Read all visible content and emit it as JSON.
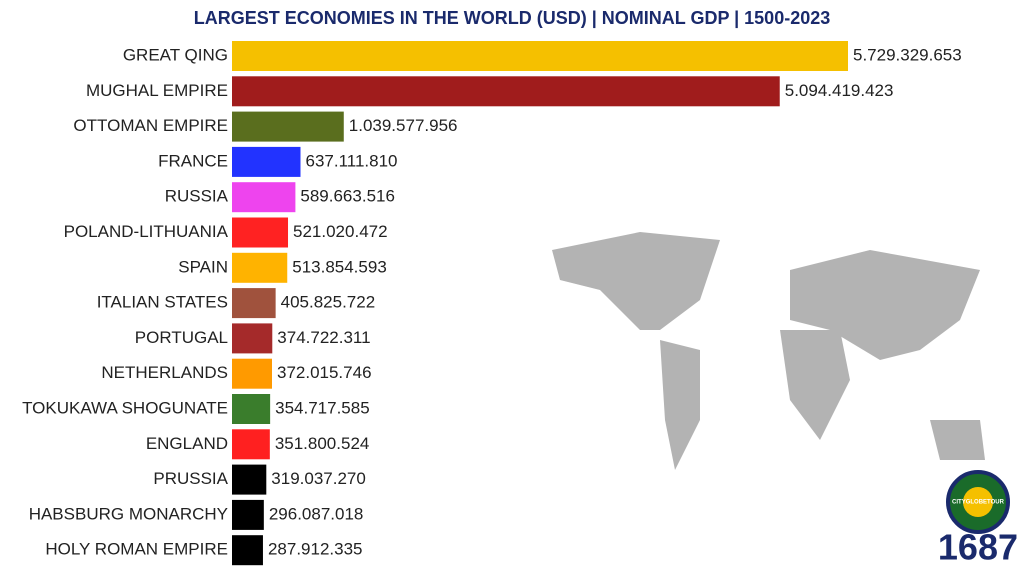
{
  "chart_data": {
    "type": "bar",
    "orientation": "horizontal",
    "title": "LARGEST ECONOMIES IN THE WORLD (USD) | NOMINAL GDP | 1500-2023",
    "period": "1687",
    "logo_text": "CITYGLOBETOUR",
    "categories": [
      "GREAT QING",
      "MUGHAL EMPIRE",
      "OTTOMAN EMPIRE",
      "FRANCE",
      "RUSSIA",
      "POLAND-LITHUANIA",
      "SPAIN",
      "ITALIAN STATES",
      "PORTUGAL",
      "NETHERLANDS",
      "TOKUKAWA SHOGUNATE",
      "ENGLAND",
      "PRUSSIA",
      "HABSBURG MONARCHY",
      "HOLY ROMAN EMPIRE"
    ],
    "values": [
      5729329653,
      5094419423,
      1039577956,
      637111810,
      589663516,
      521020472,
      513854593,
      405825722,
      374722311,
      372015746,
      354717585,
      351800524,
      319037270,
      296087018,
      287912335
    ],
    "value_labels": [
      "5.729.329.653",
      "5.094.419.423",
      "1.039.577.956",
      "637.111.810",
      "589.663.516",
      "521.020.472",
      "513.854.593",
      "405.825.722",
      "374.722.311",
      "372.015.746",
      "354.717.585",
      "351.800.524",
      "319.037.270",
      "296.087.018",
      "287.912.335"
    ],
    "colors": [
      "#f5c000",
      "#a01c1c",
      "#5a6e1e",
      "#2233ff",
      "#ee44ee",
      "#ff2222",
      "#ffb300",
      "#a0523d",
      "#a52a2a",
      "#ff9a00",
      "#3a7d2c",
      "#ff2020",
      "#000000",
      "#000000",
      "#000000"
    ]
  }
}
